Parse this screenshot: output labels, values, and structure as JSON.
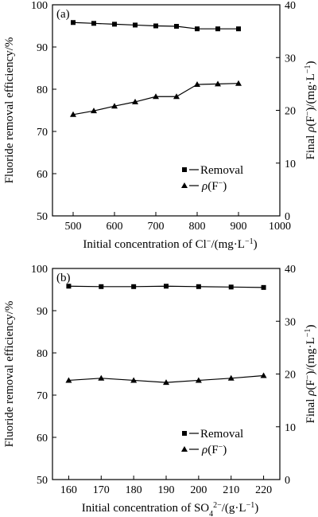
{
  "chart_data": [
    {
      "type": "line",
      "panel_label": "(a)",
      "x": [
        500,
        550,
        600,
        650,
        700,
        750,
        800,
        850,
        900
      ],
      "xlim": [
        450,
        1000
      ],
      "xticks": [
        500,
        600,
        700,
        800,
        900,
        1000
      ],
      "xlabel_parts": [
        "Initial concentration of Cl",
        "−",
        "/(mg·L",
        "−1",
        ")"
      ],
      "ylabel_left": "Fluoride removal efficiency/%",
      "ylim_left": [
        50,
        100
      ],
      "yticks_left": [
        50,
        60,
        70,
        80,
        90,
        100
      ],
      "ylabel_right_parts": [
        "Final ",
        "ρ",
        "(F",
        "−",
        ")/(mg·L",
        "−1",
        ")"
      ],
      "ylim_right": [
        0,
        40
      ],
      "yticks_right": [
        0,
        10,
        20,
        30,
        40
      ],
      "series": [
        {
          "name": "Removal",
          "axis": "left",
          "marker": "square",
          "values": [
            95.8,
            95.6,
            95.4,
            95.2,
            95.0,
            94.9,
            94.3,
            94.3,
            94.3
          ]
        },
        {
          "name_parts": [
            "ρ",
            "(F",
            "−",
            ")"
          ],
          "axis": "right",
          "marker": "triangle",
          "values": [
            19.2,
            19.9,
            20.8,
            21.6,
            22.6,
            22.6,
            24.9,
            25.0,
            25.1
          ]
        }
      ],
      "legend": "bottom-right"
    },
    {
      "type": "line",
      "panel_label": "(b)",
      "x": [
        160,
        170,
        180,
        190,
        200,
        210,
        220
      ],
      "xlim": [
        155,
        225
      ],
      "xticks": [
        160,
        170,
        180,
        190,
        200,
        210,
        220
      ],
      "xlabel_parts": [
        "Initial concentration of SO",
        "4",
        "2−",
        "/(g·L",
        "−1",
        ")"
      ],
      "ylabel_left": "Fluoride removal efficiency/%",
      "ylim_left": [
        50,
        100
      ],
      "yticks_left": [
        50,
        60,
        70,
        80,
        90,
        100
      ],
      "ylabel_right_parts": [
        "Final ",
        "ρ",
        "(F",
        "−",
        ")/(mg·L",
        "−1",
        ")"
      ],
      "ylim_right": [
        0,
        40
      ],
      "yticks_right": [
        0,
        10,
        20,
        30,
        40
      ],
      "series": [
        {
          "name": "Removal",
          "axis": "left",
          "marker": "square",
          "values": [
            95.8,
            95.7,
            95.7,
            95.8,
            95.7,
            95.6,
            95.5
          ]
        },
        {
          "name_parts": [
            "ρ",
            "(F",
            "−",
            ")"
          ],
          "axis": "right",
          "marker": "triangle",
          "values": [
            18.8,
            19.2,
            18.8,
            18.4,
            18.8,
            19.2,
            19.7
          ]
        }
      ],
      "legend": "bottom-right"
    }
  ]
}
